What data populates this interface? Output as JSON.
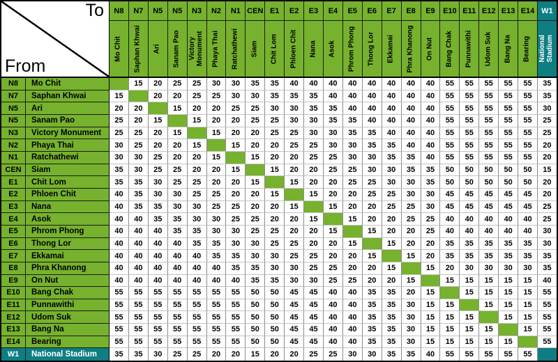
{
  "corner": {
    "to_label": "To",
    "from_label": "From"
  },
  "colors": {
    "green": "#76B22D",
    "teal": "#0E7E82",
    "grid_vertical": "#8C8C8C",
    "grid_horizontal": "#C2C2C2",
    "border": "#000000",
    "header_text": "#000000",
    "teal_text": "#FFFFFF",
    "cell_background": "#FFFFFF"
  },
  "chart_data": {
    "type": "table",
    "title": "Station-to-station fare matrix",
    "row_axis_label": "From",
    "col_axis_label": "To",
    "stations": [
      {
        "code": "N8",
        "name": "Mo Chit"
      },
      {
        "code": "N7",
        "name": "Saphan Khwai"
      },
      {
        "code": "N5",
        "name": "Ari"
      },
      {
        "code": "N5",
        "name": "Sanam Pao"
      },
      {
        "code": "N3",
        "name": "Victory Monument"
      },
      {
        "code": "N2",
        "name": "Phaya Thai"
      },
      {
        "code": "N1",
        "name": "Ratchathewi"
      },
      {
        "code": "CEN",
        "name": "Siam"
      },
      {
        "code": "E1",
        "name": "Chit Lom"
      },
      {
        "code": "E2",
        "name": "Phloen Chit"
      },
      {
        "code": "E3",
        "name": "Nana"
      },
      {
        "code": "E4",
        "name": "Asok"
      },
      {
        "code": "E5",
        "name": "Phrom Phong"
      },
      {
        "code": "E6",
        "name": "Thong Lor"
      },
      {
        "code": "E7",
        "name": "Ekkamai"
      },
      {
        "code": "E8",
        "name": "Phra Khanong"
      },
      {
        "code": "E9",
        "name": "On Nut"
      },
      {
        "code": "E10",
        "name": "Bang Chak"
      },
      {
        "code": "E11",
        "name": "Punnawithi"
      },
      {
        "code": "E12",
        "name": "Udom Suk"
      },
      {
        "code": "E13",
        "name": "Bang Na"
      },
      {
        "code": "E14",
        "name": "Bearing"
      },
      {
        "code": "W1",
        "name": "National Stadium"
      }
    ],
    "fares": [
      [
        null,
        15,
        20,
        25,
        25,
        30,
        30,
        35,
        35,
        40,
        40,
        40,
        40,
        40,
        40,
        40,
        40,
        55,
        55,
        55,
        55,
        55,
        35
      ],
      [
        15,
        null,
        20,
        20,
        25,
        25,
        30,
        30,
        35,
        35,
        35,
        40,
        40,
        40,
        40,
        40,
        40,
        55,
        55,
        55,
        55,
        55,
        35
      ],
      [
        20,
        20,
        null,
        15,
        20,
        20,
        25,
        25,
        30,
        30,
        35,
        35,
        40,
        40,
        40,
        40,
        40,
        55,
        55,
        55,
        55,
        55,
        30
      ],
      [
        25,
        20,
        15,
        null,
        15,
        20,
        20,
        25,
        25,
        30,
        30,
        35,
        35,
        40,
        40,
        40,
        40,
        55,
        55,
        55,
        55,
        55,
        25
      ],
      [
        25,
        25,
        20,
        15,
        null,
        15,
        20,
        20,
        25,
        25,
        30,
        30,
        35,
        35,
        40,
        40,
        40,
        55,
        55,
        55,
        55,
        55,
        25
      ],
      [
        30,
        25,
        20,
        20,
        15,
        null,
        15,
        20,
        20,
        25,
        25,
        30,
        30,
        35,
        35,
        40,
        40,
        55,
        55,
        55,
        55,
        55,
        20
      ],
      [
        30,
        30,
        25,
        20,
        20,
        15,
        null,
        15,
        20,
        20,
        25,
        25,
        30,
        30,
        35,
        35,
        40,
        55,
        55,
        55,
        55,
        55,
        20
      ],
      [
        35,
        30,
        25,
        25,
        20,
        20,
        15,
        null,
        15,
        20,
        20,
        25,
        25,
        30,
        30,
        35,
        35,
        50,
        50,
        50,
        50,
        50,
        15
      ],
      [
        35,
        35,
        30,
        25,
        25,
        20,
        20,
        15,
        null,
        15,
        20,
        20,
        25,
        25,
        30,
        30,
        35,
        50,
        50,
        50,
        50,
        50,
        20
      ],
      [
        40,
        35,
        30,
        30,
        25,
        25,
        20,
        20,
        15,
        null,
        15,
        20,
        20,
        25,
        25,
        30,
        30,
        45,
        45,
        45,
        45,
        45,
        20
      ],
      [
        40,
        35,
        35,
        30,
        30,
        25,
        25,
        20,
        20,
        15,
        null,
        15,
        20,
        20,
        25,
        25,
        30,
        45,
        45,
        45,
        45,
        45,
        25
      ],
      [
        40,
        40,
        35,
        35,
        30,
        30,
        25,
        25,
        20,
        20,
        15,
        null,
        15,
        20,
        20,
        25,
        25,
        40,
        40,
        40,
        40,
        40,
        25
      ],
      [
        40,
        40,
        40,
        35,
        35,
        30,
        30,
        25,
        25,
        20,
        20,
        15,
        null,
        15,
        20,
        20,
        25,
        40,
        40,
        40,
        40,
        40,
        30
      ],
      [
        40,
        40,
        40,
        40,
        35,
        35,
        30,
        30,
        25,
        25,
        20,
        20,
        15,
        null,
        15,
        20,
        20,
        35,
        35,
        35,
        35,
        35,
        30
      ],
      [
        40,
        40,
        40,
        40,
        40,
        35,
        35,
        30,
        30,
        25,
        25,
        20,
        20,
        15,
        null,
        15,
        20,
        35,
        35,
        35,
        35,
        35,
        35
      ],
      [
        40,
        40,
        40,
        40,
        40,
        40,
        35,
        35,
        30,
        30,
        25,
        25,
        20,
        20,
        15,
        null,
        15,
        20,
        30,
        30,
        30,
        30,
        35
      ],
      [
        40,
        40,
        40,
        40,
        40,
        40,
        40,
        35,
        35,
        30,
        30,
        25,
        25,
        20,
        20,
        15,
        null,
        15,
        15,
        15,
        15,
        15,
        40
      ],
      [
        55,
        55,
        55,
        55,
        55,
        55,
        55,
        50,
        50,
        45,
        45,
        40,
        40,
        35,
        35,
        20,
        15,
        null,
        15,
        15,
        15,
        15,
        55
      ],
      [
        55,
        55,
        55,
        55,
        55,
        55,
        55,
        50,
        50,
        45,
        45,
        40,
        40,
        35,
        35,
        30,
        15,
        15,
        null,
        15,
        15,
        15,
        55
      ],
      [
        55,
        55,
        55,
        55,
        55,
        55,
        55,
        50,
        50,
        45,
        45,
        40,
        40,
        35,
        35,
        30,
        15,
        15,
        15,
        null,
        15,
        15,
        55
      ],
      [
        55,
        55,
        55,
        55,
        55,
        55,
        55,
        50,
        50,
        45,
        45,
        40,
        40,
        35,
        35,
        30,
        15,
        15,
        15,
        15,
        null,
        15,
        55
      ],
      [
        55,
        55,
        55,
        55,
        55,
        55,
        55,
        50,
        50,
        45,
        45,
        40,
        40,
        35,
        35,
        30,
        15,
        15,
        15,
        15,
        15,
        null,
        55
      ],
      [
        35,
        35,
        30,
        25,
        25,
        20,
        20,
        15,
        20,
        20,
        25,
        25,
        30,
        30,
        35,
        35,
        40,
        55,
        55,
        55,
        55,
        55,
        null
      ]
    ]
  }
}
